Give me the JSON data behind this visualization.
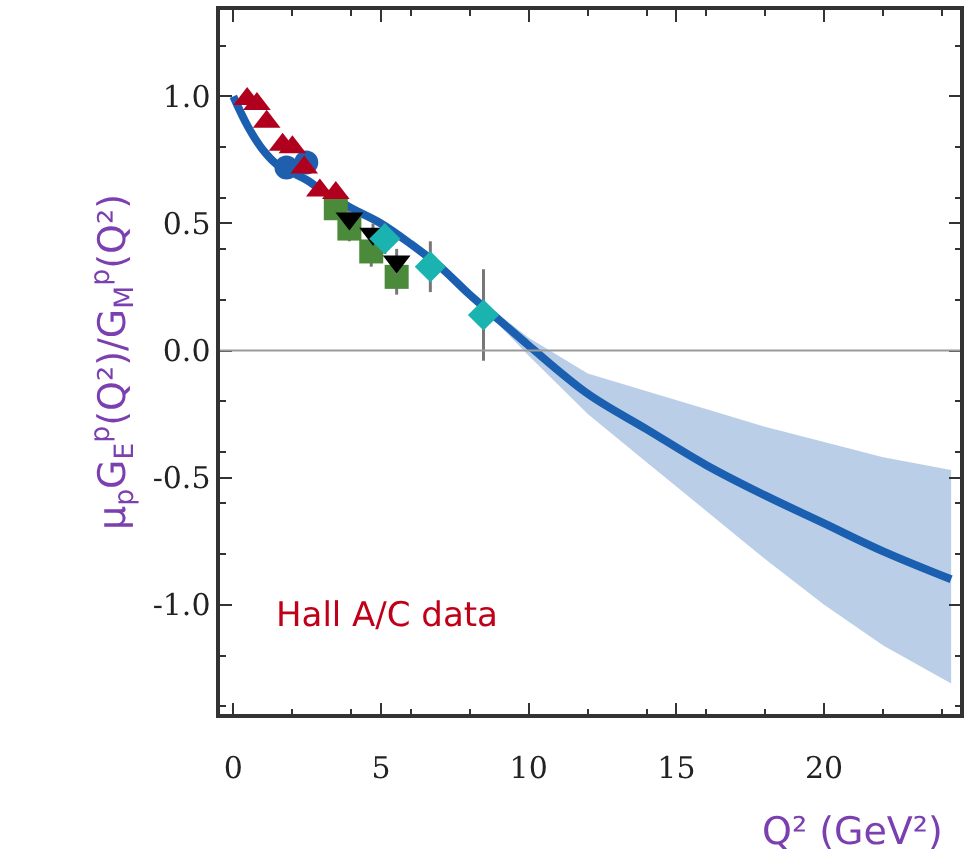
{
  "chart_data": {
    "type": "scatter",
    "xlabel": "Q² (GeV²)",
    "ylabel": "μ$_{p}$G$_{E}$$^{p}$(Q²)/G$_{M}$$^{p}$(Q²)",
    "xlim": [
      -0.45,
      24.6
    ],
    "xticks": [
      0,
      5,
      10,
      15,
      20
    ],
    "ylim": [
      -1.43,
      1.34
    ],
    "yticks": [
      {
        "value": 1,
        "label": "1.0"
      },
      {
        "value": 0.5,
        "label": "0.5"
      },
      {
        "value": 0,
        "label": "0.0"
      },
      {
        "value": -0.5,
        "label": "-0.5"
      },
      {
        "value": -1,
        "label": "-1.0"
      }
    ],
    "grid": false,
    "legend": false,
    "ref_lines": [
      {
        "axis": "y",
        "value": 0,
        "color": "#9a9a9a"
      }
    ],
    "annotations": [
      "Hall A/C data"
    ],
    "series": [
      {
        "type": "line",
        "color": "#1a5fb0",
        "marker": "none",
        "x": [
          0,
          0.5,
          1,
          1.5,
          2,
          2.5,
          3,
          4,
          5,
          6,
          7,
          8,
          9,
          10,
          12,
          14,
          16,
          18,
          20,
          22,
          24.3
        ],
        "values": [
          1.0,
          0.88,
          0.79,
          0.73,
          0.7,
          0.67,
          0.63,
          0.56,
          0.5,
          0.42,
          0.33,
          0.22,
          0.12,
          0.02,
          -0.17,
          -0.31,
          -0.45,
          -0.57,
          -0.68,
          -0.79,
          -0.9
        ],
        "lower": [
          null,
          null,
          null,
          null,
          null,
          null,
          null,
          null,
          null,
          null,
          null,
          0.2,
          0.1,
          -0.02,
          -0.25,
          -0.44,
          -0.63,
          -0.82,
          -1.0,
          -1.16,
          -1.31
        ],
        "upper": [
          null,
          null,
          null,
          null,
          null,
          null,
          null,
          null,
          null,
          null,
          null,
          0.24,
          0.14,
          0.05,
          -0.09,
          -0.16,
          -0.23,
          -0.3,
          -0.36,
          -0.42,
          -0.47
        ]
      },
      {
        "color": "#1f5fae",
        "marker": "circle",
        "x": [
          1.8,
          2.47
        ],
        "values": [
          0.72,
          0.74
        ]
      },
      {
        "color": "#4a8a3a",
        "marker": "square",
        "x": [
          3.47,
          3.93,
          4.67,
          5.53
        ],
        "values": [
          0.56,
          0.48,
          0.39,
          0.29
        ],
        "errors": [
          0.04,
          0.05,
          0.06,
          0.07
        ]
      },
      {
        "color": "#000000",
        "marker": "triangle-down",
        "x": [
          3.93,
          4.73,
          5.53
        ],
        "values": [
          0.52,
          0.46,
          0.35
        ],
        "errors": [
          0.03,
          0.04,
          0.05
        ]
      },
      {
        "color": "#1bb3b0",
        "marker": "diamond",
        "x": [
          5.13,
          6.67,
          8.47
        ],
        "values": [
          0.44,
          0.33,
          0.14
        ],
        "errors": [
          0.06,
          0.1,
          0.18
        ]
      },
      {
        "color": "#b0001e",
        "marker": "triangle",
        "x": [
          0.47,
          0.8,
          1.13,
          1.67,
          2.0,
          2.4,
          2.93,
          3.47
        ],
        "values": [
          0.99,
          0.97,
          0.9,
          0.81,
          0.8,
          0.72,
          0.63,
          0.62
        ]
      }
    ]
  }
}
